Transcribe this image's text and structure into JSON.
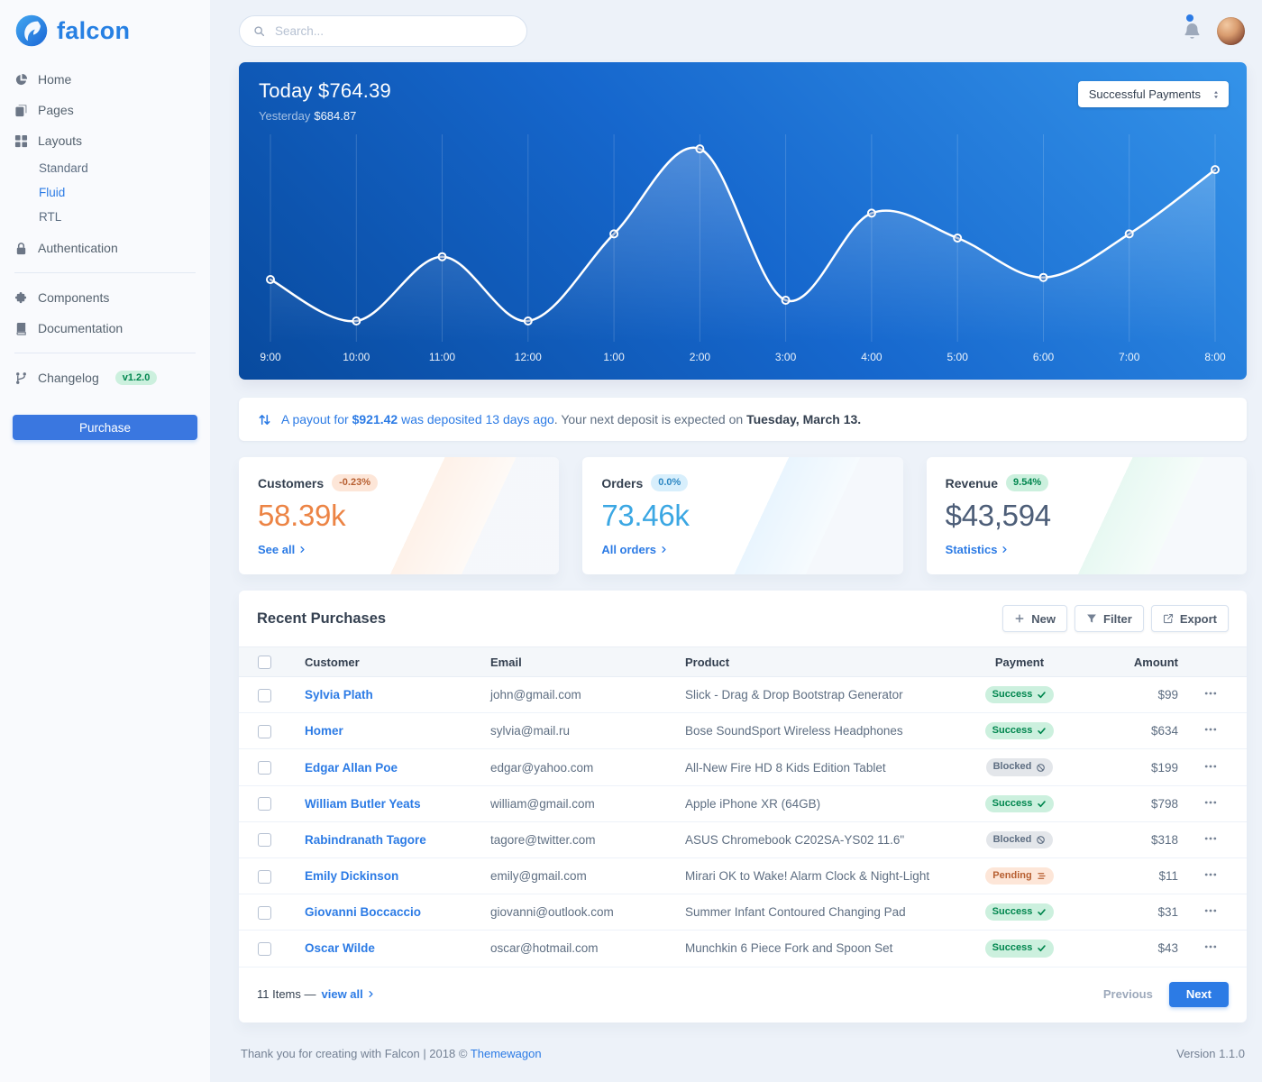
{
  "brand": {
    "name": "falcon"
  },
  "topbar": {
    "search_placeholder": "Search..."
  },
  "sidebar": {
    "items": [
      {
        "label": "Home",
        "icon": "pie-chart-icon"
      },
      {
        "label": "Pages",
        "icon": "pages-icon"
      },
      {
        "label": "Layouts",
        "icon": "grid-icon",
        "children": [
          {
            "label": "Standard",
            "active": false
          },
          {
            "label": "Fluid",
            "active": true
          },
          {
            "label": "RTL",
            "active": false
          }
        ]
      },
      {
        "label": "Authentication",
        "icon": "lock-icon",
        "divider_after": true
      },
      {
        "label": "Components",
        "icon": "puzzle-icon"
      },
      {
        "label": "Documentation",
        "icon": "book-icon",
        "divider_after": true
      },
      {
        "label": "Changelog",
        "icon": "code-branch-icon",
        "badge": "v1.2.0"
      }
    ],
    "purchase_label": "Purchase"
  },
  "payments_chart": {
    "title": "Today $764.39",
    "yesterday_label": "Yesterday",
    "yesterday_value": "$684.87",
    "range_select_value": "Successful Payments"
  },
  "chart_data": {
    "type": "line",
    "x": [
      "9:00",
      "10:00",
      "11:00",
      "12:00",
      "1:00",
      "2:00",
      "3:00",
      "4:00",
      "5:00",
      "6:00",
      "7:00",
      "8:00"
    ],
    "series": [
      {
        "name": "Successful Payments",
        "values": [
          30,
          10,
          41,
          10,
          52,
          93,
          20,
          62,
          50,
          31,
          52,
          83
        ]
      }
    ],
    "ylim": [
      0,
      100
    ],
    "grid": "vertical-only",
    "legend": "none",
    "line_color": "#ffffff",
    "title": "Today $764.39"
  },
  "payout_notice": {
    "link_text_1": "A payout for",
    "amount": "$921.42",
    "link_text_2": "was deposited 13 days ago",
    "plain_text": ". Your next deposit is expected on",
    "date_text": "Tuesday, March 13."
  },
  "stats": [
    {
      "title": "Customers",
      "badge": "-0.23%",
      "badge_style": "warning",
      "value": "58.39k",
      "value_color": "#ec8445",
      "link_label": "See all"
    },
    {
      "title": "Orders",
      "badge": "0.0%",
      "badge_style": "info",
      "value": "73.46k",
      "value_color": "#3ba7e3",
      "link_label": "All orders"
    },
    {
      "title": "Revenue",
      "badge": "9.54%",
      "badge_style": "success",
      "value": "$43,594",
      "value_color": "#4d5e78",
      "link_label": "Statistics"
    }
  ],
  "purchases": {
    "title": "Recent Purchases",
    "toolbar": [
      {
        "label": "New",
        "icon": "plus-icon"
      },
      {
        "label": "Filter",
        "icon": "filter-icon"
      },
      {
        "label": "Export",
        "icon": "export-icon"
      }
    ],
    "columns": [
      "Customer",
      "Email",
      "Product",
      "Payment",
      "Amount"
    ],
    "rows": [
      {
        "customer": "Sylvia Plath",
        "email": "john@gmail.com",
        "product": "Slick - Drag & Drop Bootstrap Generator",
        "payment": "Success",
        "amount": "$99"
      },
      {
        "customer": "Homer",
        "email": "sylvia@mail.ru",
        "product": "Bose SoundSport Wireless Headphones",
        "payment": "Success",
        "amount": "$634"
      },
      {
        "customer": "Edgar Allan Poe",
        "email": "edgar@yahoo.com",
        "product": "All-New Fire HD 8 Kids Edition Tablet",
        "payment": "Blocked",
        "amount": "$199"
      },
      {
        "customer": "William Butler Yeats",
        "email": "william@gmail.com",
        "product": "Apple iPhone XR (64GB)",
        "payment": "Success",
        "amount": "$798"
      },
      {
        "customer": "Rabindranath Tagore",
        "email": "tagore@twitter.com",
        "product": "ASUS Chromebook C202SA-YS02 11.6\"",
        "payment": "Blocked",
        "amount": "$318"
      },
      {
        "customer": "Emily Dickinson",
        "email": "emily@gmail.com",
        "product": "Mirari OK to Wake! Alarm Clock & Night-Light",
        "payment": "Pending",
        "amount": "$11"
      },
      {
        "customer": "Giovanni Boccaccio",
        "email": "giovanni@outlook.com",
        "product": "Summer Infant Contoured Changing Pad",
        "payment": "Success",
        "amount": "$31"
      },
      {
        "customer": "Oscar Wilde",
        "email": "oscar@hotmail.com",
        "product": "Munchkin 6 Piece Fork and Spoon Set",
        "payment": "Success",
        "amount": "$43"
      }
    ],
    "summary": "11 Items —",
    "view_all_label": "view all",
    "prev_label": "Previous",
    "next_label": "Next"
  },
  "page_footer": {
    "thanks_text": "Thank you for creating with Falcon | 2018 ©",
    "brand_link": "Themewagon",
    "version": "Version 1.1.0"
  },
  "colors": {
    "accent": "#2c7be5",
    "chart_gradient_start": "#084a9e",
    "chart_gradient_end": "#3493e9",
    "success_bg": "#ccf0de",
    "success_text": "#00864e",
    "warning_bg": "#fde6d8",
    "warning_text": "#b75f31",
    "info_bg": "#d8effc",
    "info_text": "#2d87c3",
    "secondary_bg": "#e3e6ea",
    "secondary_text": "#5e6e82"
  }
}
